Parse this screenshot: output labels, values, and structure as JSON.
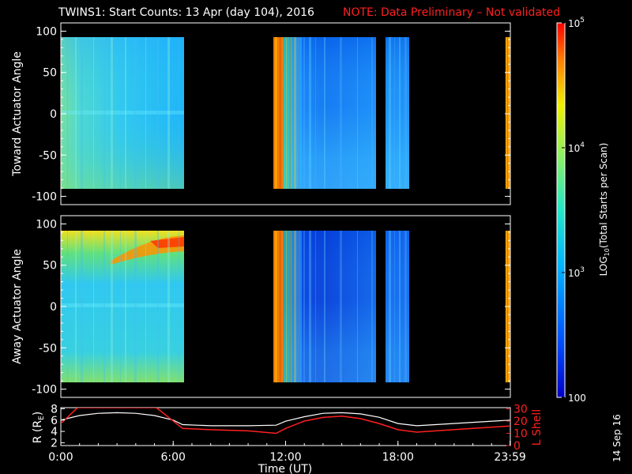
{
  "title": "TWINS1: Start Counts: 13 Apr (day 104), 2016",
  "note": "NOTE: Data Preliminary – Not validated",
  "date_stamp": "14 Sep 16",
  "colors": {
    "note": "#ff2020",
    "r_trace": "#ffffff",
    "lshell_trace": "#ff2020",
    "background": "#000000"
  },
  "chart_data": [
    {
      "type": "heatmap",
      "ylabel": "Toward Actuator Angle",
      "ylim": [
        -110,
        110
      ],
      "yticks": [
        100,
        50,
        0,
        -50,
        -100
      ],
      "xlim": [
        0,
        24
      ],
      "data_segments_hours": [
        [
          0.0,
          6.6
        ],
        [
          11.5,
          17.0
        ],
        [
          17.6,
          18.7
        ],
        [
          23.6,
          24.0
        ]
      ]
    },
    {
      "type": "heatmap",
      "ylabel": "Away Actuator Angle",
      "ylim": [
        -110,
        110
      ],
      "yticks": [
        100,
        50,
        0,
        -50,
        -100
      ],
      "xlim": [
        0,
        24
      ],
      "data_segments_hours": [
        [
          0.0,
          6.6
        ],
        [
          11.5,
          17.0
        ],
        [
          17.6,
          18.7
        ],
        [
          23.6,
          24.0
        ]
      ]
    },
    {
      "type": "line",
      "xlabel": "Time (UT)",
      "xticks": [
        "0:00",
        "6:00",
        "12:00",
        "18:00",
        "23:59"
      ],
      "ylabel_left": "R (R",
      "ylabel_left_sub": "E",
      "ylabel_left_end": ")",
      "yticks_left": [
        "8",
        "6",
        "4",
        "2"
      ],
      "ylim_left": [
        1.5,
        8.2
      ],
      "ylabel_right": "L Shell",
      "yticks_right": [
        "30",
        "20",
        "10",
        "0"
      ],
      "ylim_right": [
        0,
        31
      ],
      "series": [
        {
          "name": "R",
          "x": [
            0,
            1,
            2,
            3,
            4,
            5,
            6,
            6.5,
            8,
            10,
            11.5,
            12,
            13,
            14,
            15,
            16,
            17,
            18,
            19,
            20,
            22,
            24
          ],
          "y": [
            6.0,
            6.8,
            7.2,
            7.3,
            7.2,
            6.8,
            6.0,
            5.2,
            5.0,
            5.0,
            5.1,
            5.8,
            6.6,
            7.2,
            7.3,
            7.1,
            6.5,
            5.4,
            5.0,
            5.2,
            5.6,
            6.0
          ],
          "axis": "left"
        },
        {
          "name": "L Shell",
          "x": [
            0,
            0.9,
            1.0,
            5.0,
            5.1,
            6.5,
            8,
            10,
            11.5,
            12,
            13,
            14,
            15,
            16,
            17,
            18,
            19,
            20,
            22,
            24
          ],
          "y": [
            18,
            31,
            31,
            31,
            31,
            14,
            13,
            12,
            10,
            14,
            20,
            23,
            24,
            22,
            18,
            13,
            11,
            12,
            14,
            16
          ],
          "axis": "right"
        }
      ]
    }
  ],
  "colorbar": {
    "label_pre": "LOG",
    "label_sub": "10",
    "label_post": "(Total Starts per Scan)",
    "ticks": [
      {
        "base": "10",
        "exp": "5",
        "value": 100000
      },
      {
        "base": "10",
        "exp": "4",
        "value": 10000
      },
      {
        "base": "10",
        "exp": "3",
        "value": 1000
      },
      {
        "base": "100",
        "exp": "",
        "value": 100
      }
    ],
    "range": [
      100,
      100000
    ]
  }
}
